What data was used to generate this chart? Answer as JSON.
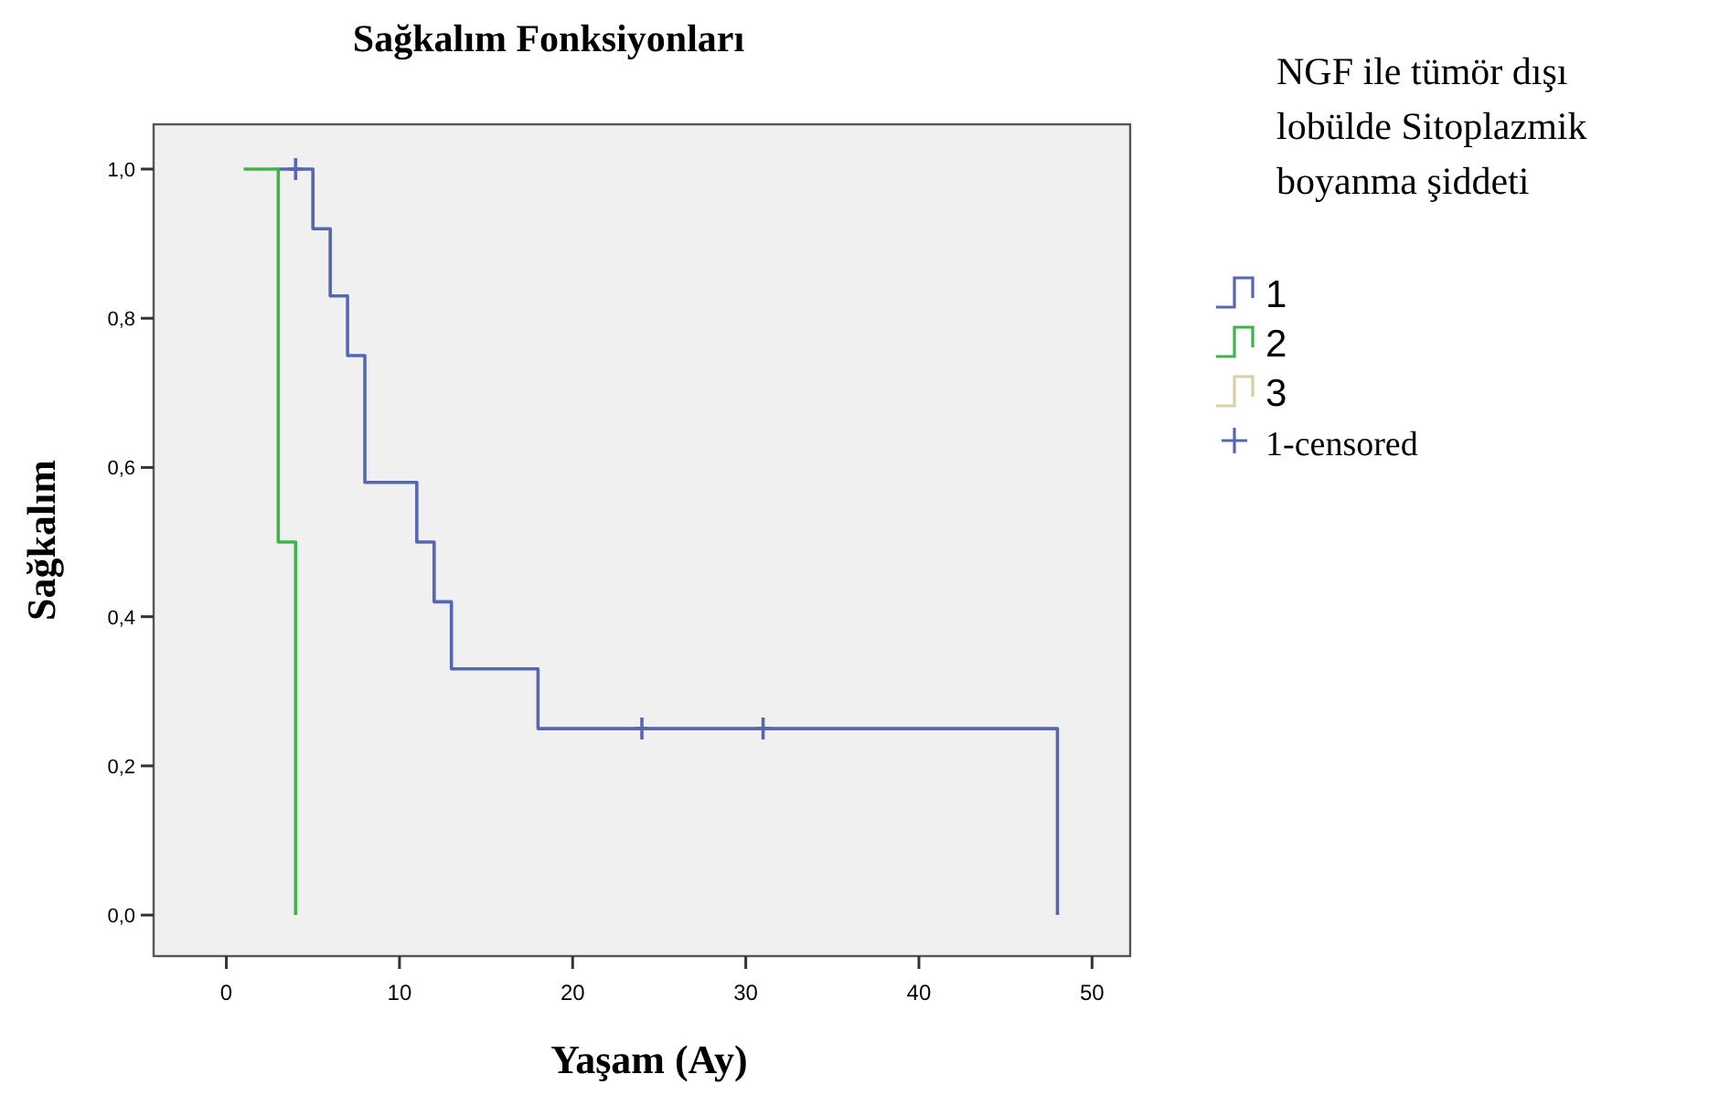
{
  "chart_data": {
    "type": "step",
    "title": "Sağkalım Fonksiyonları",
    "xlabel": "Yaşam (Ay)",
    "ylabel": "Sağkalım",
    "legend_title": "NGF ile tümör dışı lobülde Sitoplazmik boyanma şiddeti",
    "legend": "right",
    "xlim": [
      -4.2,
      52.2
    ],
    "ylim": [
      -0.055,
      1.06
    ],
    "xticks": [
      0,
      10,
      20,
      30,
      40,
      50
    ],
    "yticks": [
      {
        "value": 0,
        "label": "0,0"
      },
      {
        "value": 0.2,
        "label": "0,2"
      },
      {
        "value": 0.4,
        "label": "0,4"
      },
      {
        "value": 0.6,
        "label": "0,6"
      },
      {
        "value": 0.8,
        "label": "0,8"
      },
      {
        "value": 1,
        "label": "1,0"
      }
    ],
    "series": [
      {
        "name": "1",
        "color": "#5466b4",
        "x": [
          3,
          4,
          5,
          6,
          7,
          8,
          11,
          12,
          13,
          18,
          24,
          31,
          48
        ],
        "values": [
          1,
          1,
          0.92,
          0.83,
          0.75,
          0.58,
          0.5,
          0.42,
          0.33,
          0.25,
          0.25,
          0.25,
          0
        ]
      },
      {
        "name": "2",
        "color": "#3cb44a",
        "x": [
          1,
          3,
          4
        ],
        "values": [
          1,
          0.5,
          0
        ]
      },
      {
        "name": "3",
        "color": "#d8cfa6"
      },
      {
        "name": "1-censored",
        "type": "scatter",
        "marker": "cross",
        "color": "#5466b4",
        "x": [
          4,
          24,
          31
        ],
        "values": [
          1,
          0.25,
          0.25
        ]
      }
    ]
  }
}
